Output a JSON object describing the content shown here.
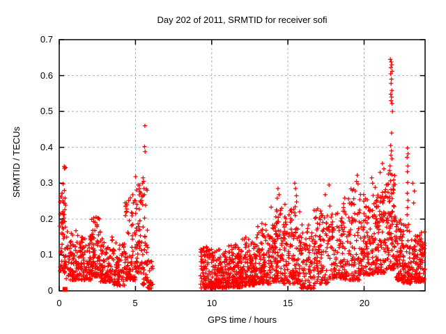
{
  "chart_data": {
    "type": "scatter",
    "title": "Day 202 of 2011, SRMTID for receiver sofi",
    "xlabel": "GPS time / hours",
    "ylabel": "SRMTID / TECUs",
    "xlim": [
      0,
      24
    ],
    "ylim": [
      0,
      0.7
    ],
    "xticks": [
      0,
      5,
      10,
      15,
      20
    ],
    "yticks": [
      0,
      0.1,
      0.2,
      0.3,
      0.4,
      0.5,
      0.6,
      0.7
    ],
    "xtick_labels": [
      "0",
      "5",
      "10",
      "15",
      "20"
    ],
    "ytick_labels": [
      "0",
      "0.1",
      "0.2",
      "0.3",
      "0.4",
      "0.5",
      "0.6",
      "0.7"
    ],
    "grid": true,
    "legend": "none",
    "marker": "plus",
    "marker_color": "#ff0000",
    "grid_color": "#b0b0b0",
    "frame_color": "#000000",
    "background": "#ffffff",
    "data_gap_hours": [
      6.1,
      9.25
    ],
    "square_point": [
      0.38,
      0.004
    ],
    "seed": 20110202,
    "segments_format": [
      "x_start_h",
      "x_end_h",
      "n_points",
      "y_min",
      "y_max",
      "skew"
    ],
    "segments": [
      [
        0.03,
        0.45,
        55,
        0.05,
        0.26,
        1.6
      ],
      [
        0.05,
        0.4,
        8,
        0.19,
        0.3,
        1.0
      ],
      [
        0.33,
        0.42,
        4,
        0.33,
        0.375,
        1.0
      ],
      [
        0.45,
        1.1,
        70,
        0.03,
        0.17,
        1.7
      ],
      [
        1.1,
        2.1,
        115,
        0.03,
        0.155,
        1.7
      ],
      [
        2.1,
        2.7,
        85,
        0.04,
        0.21,
        1.8
      ],
      [
        2.7,
        3.5,
        95,
        0.025,
        0.15,
        1.7
      ],
      [
        3.5,
        4.3,
        85,
        0.015,
        0.135,
        1.6
      ],
      [
        4.3,
        5.0,
        85,
        0.03,
        0.27,
        1.8
      ],
      [
        5.0,
        5.45,
        55,
        0.05,
        0.32,
        1.7
      ],
      [
        5.45,
        5.85,
        42,
        0.01,
        0.3,
        1.9
      ],
      [
        5.85,
        6.15,
        20,
        0.004,
        0.09,
        1.5
      ],
      [
        9.25,
        10.0,
        105,
        0.008,
        0.125,
        1.6
      ],
      [
        10.0,
        11.0,
        150,
        0.008,
        0.115,
        1.6
      ],
      [
        11.0,
        12.0,
        150,
        0.01,
        0.13,
        1.7
      ],
      [
        12.0,
        13.0,
        140,
        0.015,
        0.15,
        1.7
      ],
      [
        13.0,
        13.9,
        112,
        0.02,
        0.19,
        1.8
      ],
      [
        13.9,
        14.7,
        105,
        0.025,
        0.235,
        1.8
      ],
      [
        14.7,
        15.8,
        130,
        0.02,
        0.25,
        1.9
      ],
      [
        15.8,
        16.7,
        95,
        0.006,
        0.185,
        1.7
      ],
      [
        16.7,
        17.7,
        105,
        0.02,
        0.23,
        1.8
      ],
      [
        17.7,
        18.7,
        105,
        0.035,
        0.245,
        1.8
      ],
      [
        18.7,
        19.7,
        105,
        0.03,
        0.285,
        1.9
      ],
      [
        19.7,
        20.7,
        115,
        0.045,
        0.27,
        1.9
      ],
      [
        20.7,
        21.45,
        110,
        0.05,
        0.29,
        1.8
      ],
      [
        21.45,
        22.05,
        95,
        0.06,
        0.33,
        1.8
      ],
      [
        22.05,
        22.55,
        75,
        0.03,
        0.2,
        1.7
      ],
      [
        22.55,
        23.05,
        75,
        0.02,
        0.19,
        1.7
      ],
      [
        23.05,
        24.0,
        125,
        0.025,
        0.165,
        1.7
      ]
    ],
    "outliers": [
      [
        0.1,
        0.262
      ],
      [
        0.18,
        0.272
      ],
      [
        0.25,
        0.298
      ],
      [
        5.62,
        0.46
      ],
      [
        5.6,
        0.402
      ],
      [
        5.63,
        0.388
      ],
      [
        5.5,
        0.315
      ],
      [
        5.53,
        0.305
      ],
      [
        5.47,
        0.3
      ],
      [
        5.56,
        0.285
      ],
      [
        5.58,
        0.268
      ],
      [
        5.42,
        0.262
      ],
      [
        14.35,
        0.285
      ],
      [
        14.42,
        0.268
      ],
      [
        14.3,
        0.258
      ],
      [
        15.45,
        0.3
      ],
      [
        15.5,
        0.285
      ],
      [
        15.56,
        0.265
      ],
      [
        17.7,
        0.295
      ],
      [
        17.45,
        0.268
      ],
      [
        19.55,
        0.322
      ],
      [
        19.5,
        0.305
      ],
      [
        19.6,
        0.298
      ],
      [
        20.5,
        0.315
      ],
      [
        20.56,
        0.3
      ],
      [
        21.05,
        0.33
      ],
      [
        21.2,
        0.355
      ],
      [
        21.3,
        0.34
      ],
      [
        21.72,
        0.645
      ],
      [
        21.78,
        0.638
      ],
      [
        21.81,
        0.63
      ],
      [
        21.76,
        0.622
      ],
      [
        21.84,
        0.612
      ],
      [
        21.74,
        0.605
      ],
      [
        21.79,
        0.59
      ],
      [
        21.77,
        0.578
      ],
      [
        21.82,
        0.558
      ],
      [
        21.75,
        0.548
      ],
      [
        21.8,
        0.54
      ],
      [
        21.77,
        0.53
      ],
      [
        21.83,
        0.522
      ],
      [
        21.86,
        0.5
      ],
      [
        21.8,
        0.44
      ],
      [
        21.74,
        0.405
      ],
      [
        21.79,
        0.39
      ],
      [
        21.76,
        0.378
      ],
      [
        21.83,
        0.368
      ],
      [
        21.7,
        0.348
      ],
      [
        21.67,
        0.335
      ],
      [
        22.85,
        0.398
      ],
      [
        22.88,
        0.382
      ],
      [
        22.82,
        0.372
      ],
      [
        22.87,
        0.348
      ],
      [
        22.84,
        0.332
      ],
      [
        22.86,
        0.302
      ],
      [
        22.83,
        0.272
      ],
      [
        22.88,
        0.252
      ],
      [
        22.85,
        0.232
      ],
      [
        22.82,
        0.212
      ],
      [
        23.18,
        0.3
      ],
      [
        23.3,
        0.278
      ],
      [
        23.25,
        0.245
      ]
    ]
  }
}
